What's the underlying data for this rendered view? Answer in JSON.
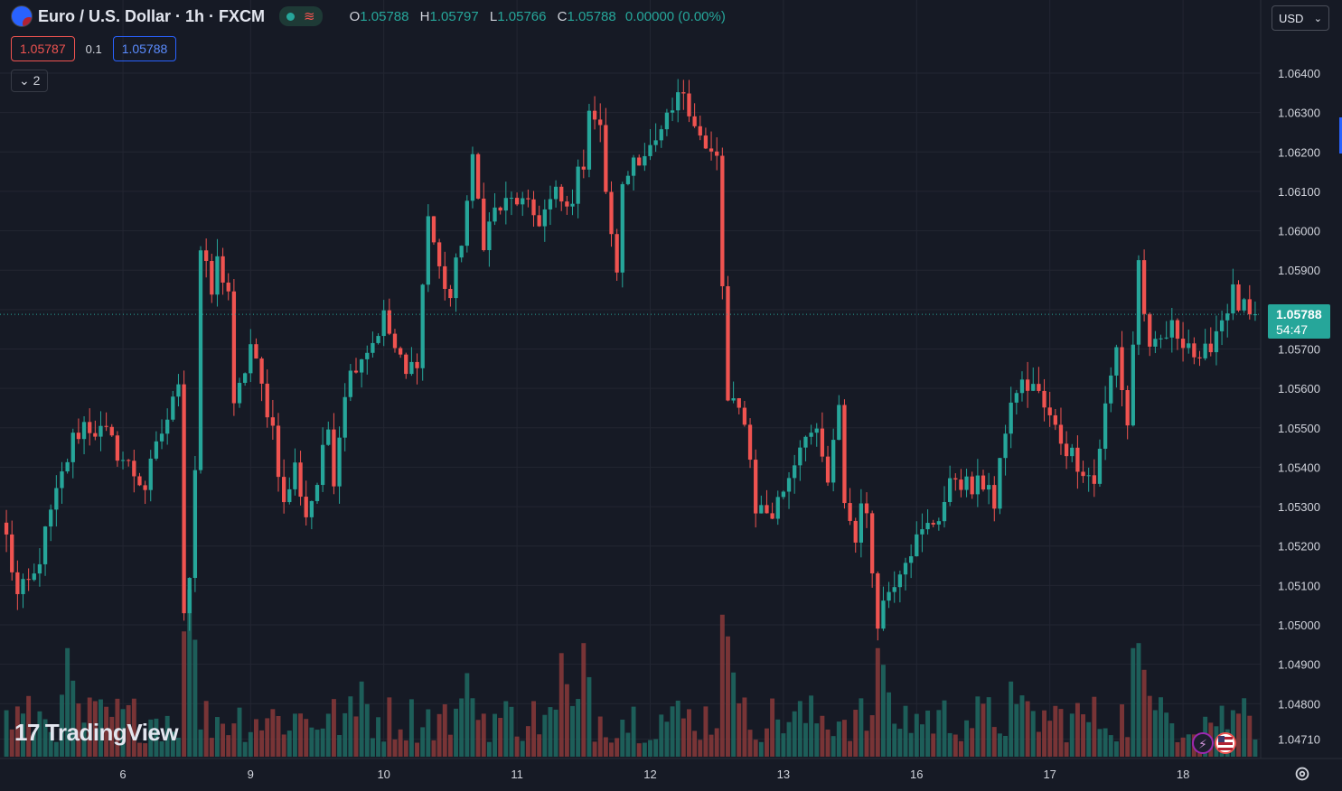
{
  "header": {
    "title": "Euro / U.S. Dollar · 1h · FXCM",
    "ohlc": {
      "o_label": "O",
      "o": "1.05788",
      "h_label": "H",
      "h": "1.05797",
      "l_label": "L",
      "l": "1.05766",
      "c_label": "C",
      "c": "1.05788",
      "change": "0.00000 (0.00%)"
    }
  },
  "bidask": {
    "bid": "1.05787",
    "spread": "0.1",
    "ask": "1.05788"
  },
  "indicators_collapse": "2",
  "currency": "USD",
  "logo": "TradingView",
  "last_price": {
    "price": "1.05788",
    "countdown": "54:47"
  },
  "colors": {
    "up": "#26a69a",
    "down": "#ef5350",
    "bg": "#161a25",
    "grid": "#232632",
    "accent": "#2962ff"
  },
  "chart_data": {
    "type": "candlestick",
    "symbol": "EURUSD",
    "interval": "1h",
    "grid": true,
    "y_ticks": [
      1.0471,
      1.048,
      1.049,
      1.05,
      1.051,
      1.052,
      1.053,
      1.054,
      1.055,
      1.056,
      1.057,
      1.058,
      1.059,
      1.06,
      1.061,
      1.062,
      1.063,
      1.064
    ],
    "y_tick_labels": [
      "1.04710",
      "1.04800",
      "1.04900",
      "1.05000",
      "1.05100",
      "1.05200",
      "1.05300",
      "1.05400",
      "1.05500",
      "1.05600",
      "1.05700",
      "1.05800",
      "1.05900",
      "1.06000",
      "1.06100",
      "1.06200",
      "1.06300",
      "1.06400"
    ],
    "ylim": [
      1.0463,
      1.0653
    ],
    "x_ticks": [
      {
        "label": "6",
        "bar": 21
      },
      {
        "label": "9",
        "bar": 44
      },
      {
        "label": "10",
        "bar": 68
      },
      {
        "label": "11",
        "bar": 92
      },
      {
        "label": "12",
        "bar": 116
      },
      {
        "label": "13",
        "bar": 140
      },
      {
        "label": "16",
        "bar": 164
      },
      {
        "label": "17",
        "bar": 188
      },
      {
        "label": "18",
        "bar": 212
      }
    ],
    "close_path": [
      {
        "bar": 0,
        "price": 1.0522
      },
      {
        "bar": 2,
        "price": 1.0507
      },
      {
        "bar": 5,
        "price": 1.0512
      },
      {
        "bar": 8,
        "price": 1.0528
      },
      {
        "bar": 12,
        "price": 1.0547
      },
      {
        "bar": 14,
        "price": 1.0551
      },
      {
        "bar": 18,
        "price": 1.0548
      },
      {
        "bar": 21,
        "price": 1.0542
      },
      {
        "bar": 25,
        "price": 1.0535
      },
      {
        "bar": 28,
        "price": 1.0549
      },
      {
        "bar": 30,
        "price": 1.0556
      },
      {
        "bar": 31,
        "price": 1.0563
      },
      {
        "bar": 32,
        "price": 1.0505
      },
      {
        "bar": 33,
        "price": 1.0513
      },
      {
        "bar": 34,
        "price": 1.054
      },
      {
        "bar": 35,
        "price": 1.0595
      },
      {
        "bar": 37,
        "price": 1.0584
      },
      {
        "bar": 38,
        "price": 1.0592
      },
      {
        "bar": 40,
        "price": 1.0585
      },
      {
        "bar": 41,
        "price": 1.0554
      },
      {
        "bar": 43,
        "price": 1.0565
      },
      {
        "bar": 44,
        "price": 1.0571
      },
      {
        "bar": 46,
        "price": 1.056
      },
      {
        "bar": 48,
        "price": 1.055
      },
      {
        "bar": 50,
        "price": 1.053
      },
      {
        "bar": 52,
        "price": 1.054
      },
      {
        "bar": 54,
        "price": 1.0528
      },
      {
        "bar": 56,
        "price": 1.0536
      },
      {
        "bar": 58,
        "price": 1.055
      },
      {
        "bar": 59,
        "price": 1.0538
      },
      {
        "bar": 61,
        "price": 1.056
      },
      {
        "bar": 63,
        "price": 1.0567
      },
      {
        "bar": 66,
        "price": 1.0572
      },
      {
        "bar": 68,
        "price": 1.0578
      },
      {
        "bar": 70,
        "price": 1.057
      },
      {
        "bar": 72,
        "price": 1.0563
      },
      {
        "bar": 74,
        "price": 1.0568
      },
      {
        "bar": 76,
        "price": 1.0604
      },
      {
        "bar": 78,
        "price": 1.059
      },
      {
        "bar": 80,
        "price": 1.0583
      },
      {
        "bar": 82,
        "price": 1.0598
      },
      {
        "bar": 84,
        "price": 1.0617
      },
      {
        "bar": 86,
        "price": 1.0598
      },
      {
        "bar": 88,
        "price": 1.0605
      },
      {
        "bar": 92,
        "price": 1.0608
      },
      {
        "bar": 94,
        "price": 1.0605
      },
      {
        "bar": 96,
        "price": 1.0603
      },
      {
        "bar": 99,
        "price": 1.0609
      },
      {
        "bar": 101,
        "price": 1.0605
      },
      {
        "bar": 104,
        "price": 1.0618
      },
      {
        "bar": 105,
        "price": 1.0632
      },
      {
        "bar": 107,
        "price": 1.0625
      },
      {
        "bar": 109,
        "price": 1.0597
      },
      {
        "bar": 110,
        "price": 1.0591
      },
      {
        "bar": 111,
        "price": 1.061
      },
      {
        "bar": 113,
        "price": 1.0619
      },
      {
        "bar": 117,
        "price": 1.0621
      },
      {
        "bar": 120,
        "price": 1.063
      },
      {
        "bar": 122,
        "price": 1.0636
      },
      {
        "bar": 124,
        "price": 1.0628
      },
      {
        "bar": 126,
        "price": 1.062
      },
      {
        "bar": 128,
        "price": 1.0618
      },
      {
        "bar": 129,
        "price": 1.0586
      },
      {
        "bar": 130,
        "price": 1.0556
      },
      {
        "bar": 133,
        "price": 1.0553
      },
      {
        "bar": 135,
        "price": 1.053
      },
      {
        "bar": 138,
        "price": 1.0528
      },
      {
        "bar": 141,
        "price": 1.0538
      },
      {
        "bar": 144,
        "price": 1.055
      },
      {
        "bar": 146,
        "price": 1.0547
      },
      {
        "bar": 148,
        "price": 1.0536
      },
      {
        "bar": 150,
        "price": 1.0554
      },
      {
        "bar": 151,
        "price": 1.0532
      },
      {
        "bar": 153,
        "price": 1.0521
      },
      {
        "bar": 154,
        "price": 1.0533
      },
      {
        "bar": 155,
        "price": 1.0526
      },
      {
        "bar": 157,
        "price": 1.0502
      },
      {
        "bar": 159,
        "price": 1.0509
      },
      {
        "bar": 162,
        "price": 1.0518
      },
      {
        "bar": 165,
        "price": 1.0523
      },
      {
        "bar": 168,
        "price": 1.0528
      },
      {
        "bar": 171,
        "price": 1.0538
      },
      {
        "bar": 174,
        "price": 1.0534
      },
      {
        "bar": 177,
        "price": 1.0537
      },
      {
        "bar": 178,
        "price": 1.0529
      },
      {
        "bar": 180,
        "price": 1.055
      },
      {
        "bar": 182,
        "price": 1.056
      },
      {
        "bar": 185,
        "price": 1.0561
      },
      {
        "bar": 188,
        "price": 1.0552
      },
      {
        "bar": 191,
        "price": 1.0545
      },
      {
        "bar": 194,
        "price": 1.054
      },
      {
        "bar": 196,
        "price": 1.0536
      },
      {
        "bar": 198,
        "price": 1.0555
      },
      {
        "bar": 200,
        "price": 1.057
      },
      {
        "bar": 202,
        "price": 1.0551
      },
      {
        "bar": 204,
        "price": 1.0592
      },
      {
        "bar": 206,
        "price": 1.0568
      },
      {
        "bar": 208,
        "price": 1.0572
      },
      {
        "bar": 210,
        "price": 1.0575
      },
      {
        "bar": 213,
        "price": 1.0572
      },
      {
        "bar": 215,
        "price": 1.0565
      },
      {
        "bar": 217,
        "price": 1.0572
      },
      {
        "bar": 219,
        "price": 1.0578
      },
      {
        "bar": 221,
        "price": 1.0584
      },
      {
        "bar": 222,
        "price": 1.0581
      },
      {
        "bar": 224,
        "price": 1.05788
      }
    ],
    "volume_spikes": [
      {
        "bar": 11,
        "value": 0.65
      },
      {
        "bar": 32,
        "value": 0.75
      },
      {
        "bar": 33,
        "value": 1.0
      },
      {
        "bar": 64,
        "value": 0.45
      },
      {
        "bar": 83,
        "value": 0.5
      },
      {
        "bar": 100,
        "value": 0.62
      },
      {
        "bar": 104,
        "value": 0.68
      },
      {
        "bar": 129,
        "value": 0.85
      },
      {
        "bar": 130,
        "value": 0.72
      },
      {
        "bar": 157,
        "value": 0.65
      },
      {
        "bar": 158,
        "value": 0.55
      },
      {
        "bar": 181,
        "value": 0.45
      },
      {
        "bar": 203,
        "value": 0.65
      },
      {
        "bar": 204,
        "value": 0.68
      },
      {
        "bar": 205,
        "value": 0.52
      },
      {
        "bar": 223,
        "value": 0.35
      }
    ]
  }
}
